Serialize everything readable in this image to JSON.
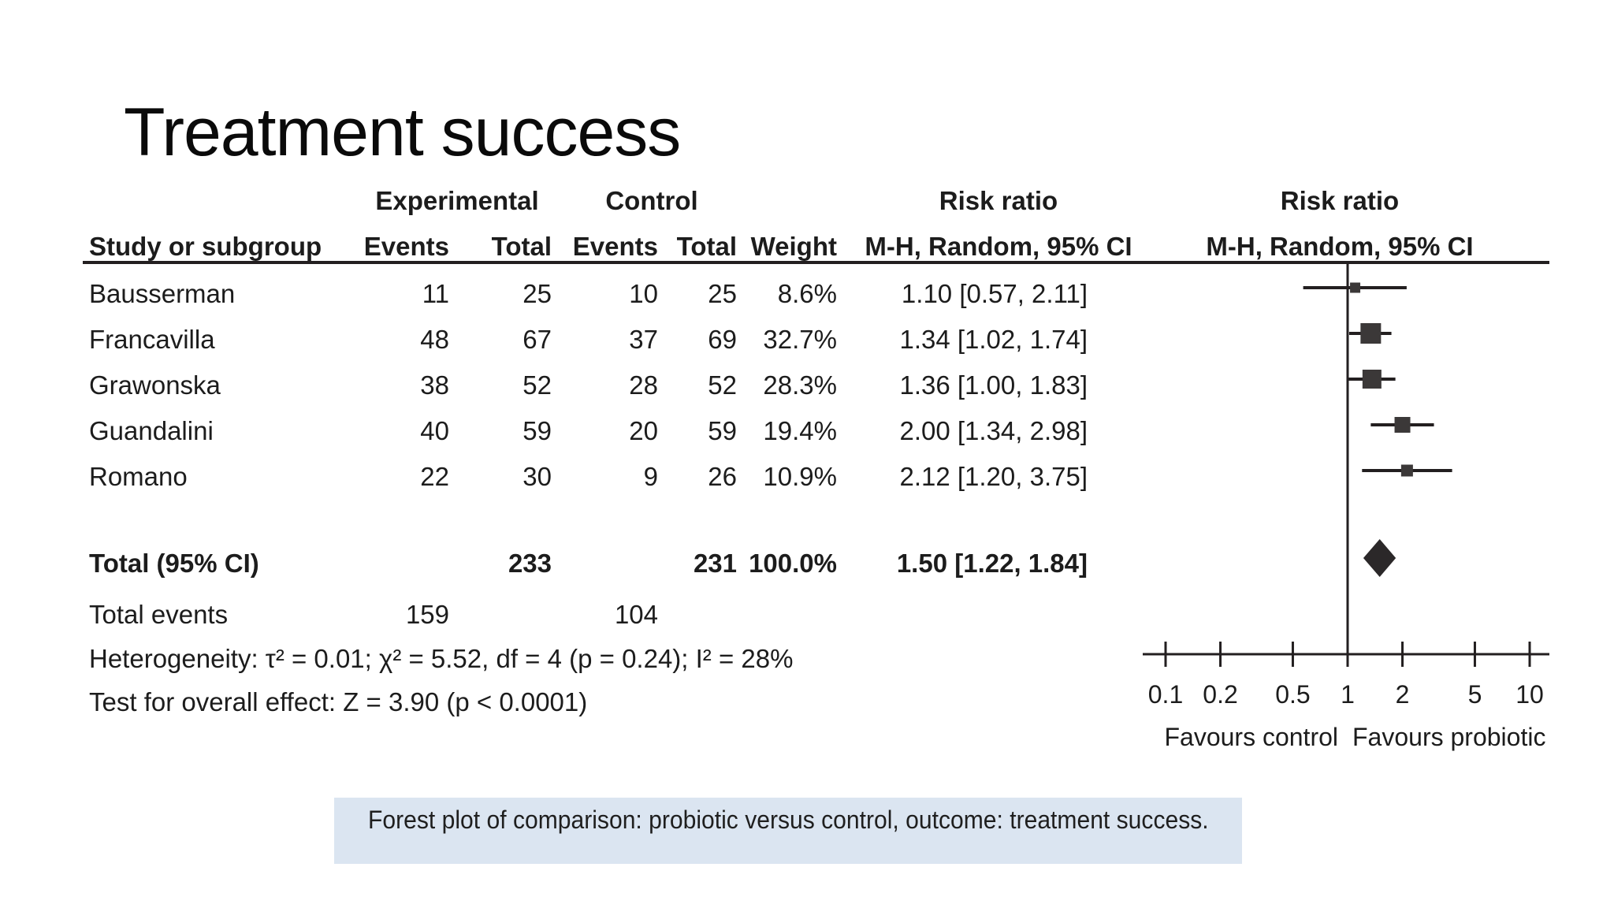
{
  "slide": {
    "title": "Treatment success"
  },
  "table": {
    "group_headers": {
      "experimental": "Experimental",
      "control": "Control",
      "risk_ratio_left": "Risk ratio",
      "risk_ratio_right": "Risk ratio"
    },
    "column_headers": {
      "study": "Study or subgroup",
      "exp_events": "Events",
      "exp_total": "Total",
      "ctrl_events": "Events",
      "ctrl_total": "Total",
      "weight": "Weight",
      "mh_left": "M-H, Random, 95% CI",
      "mh_right": "M-H, Random, 95% CI"
    },
    "rows": [
      {
        "study": "Bausserman",
        "exp_events": "11",
        "exp_total": "25",
        "ctrl_events": "10",
        "ctrl_total": "25",
        "weight": "8.6%",
        "rr_text": "1.10 [0.57, 2.11]"
      },
      {
        "study": "Francavilla",
        "exp_events": "48",
        "exp_total": "67",
        "ctrl_events": "37",
        "ctrl_total": "69",
        "weight": "32.7%",
        "rr_text": "1.34 [1.02, 1.74]"
      },
      {
        "study": "Grawonska",
        "exp_events": "38",
        "exp_total": "52",
        "ctrl_events": "28",
        "ctrl_total": "52",
        "weight": "28.3%",
        "rr_text": "1.36 [1.00, 1.83]"
      },
      {
        "study": "Guandalini",
        "exp_events": "40",
        "exp_total": "59",
        "ctrl_events": "20",
        "ctrl_total": "59",
        "weight": "19.4%",
        "rr_text": "2.00 [1.34, 2.98]"
      },
      {
        "study": "Romano",
        "exp_events": "22",
        "exp_total": "30",
        "ctrl_events": "9",
        "ctrl_total": "26",
        "weight": "10.9%",
        "rr_text": "2.12 [1.20, 3.75]"
      }
    ],
    "total_row": {
      "label": "Total (95% CI)",
      "exp_total": "233",
      "ctrl_total": "231",
      "weight": "100.0%",
      "rr_text": "1.50 [1.22, 1.84]"
    },
    "total_events": {
      "label": "Total events",
      "exp": "159",
      "ctrl": "104"
    },
    "heterogeneity": "Heterogeneity: τ² = 0.01; χ² = 5.52, df = 4 (p = 0.24); I² = 28%",
    "overall_effect": "Test for overall effect: Z = 3.90 (p < 0.0001)"
  },
  "chart_data": {
    "type": "forest",
    "x_scale": "log10",
    "axis_ticks": [
      0.1,
      0.2,
      0.5,
      1,
      2,
      5,
      10
    ],
    "axis_tick_labels": [
      "0.1",
      "0.2",
      "0.5",
      "1",
      "2",
      "5",
      "10"
    ],
    "null_line_value": 1,
    "favours_left": "Favours control",
    "favours_right": "Favours probiotic",
    "studies": [
      {
        "name": "Bausserman",
        "rr": 1.1,
        "ci_low": 0.57,
        "ci_high": 2.11,
        "weight_pct": 8.6
      },
      {
        "name": "Francavilla",
        "rr": 1.34,
        "ci_low": 1.02,
        "ci_high": 1.74,
        "weight_pct": 32.7
      },
      {
        "name": "Grawonska",
        "rr": 1.36,
        "ci_low": 1.0,
        "ci_high": 1.83,
        "weight_pct": 28.3
      },
      {
        "name": "Guandalini",
        "rr": 2.0,
        "ci_low": 1.34,
        "ci_high": 2.98,
        "weight_pct": 19.4
      },
      {
        "name": "Romano",
        "rr": 2.12,
        "ci_low": 1.2,
        "ci_high": 3.75,
        "weight_pct": 10.9
      }
    ],
    "total": {
      "rr": 1.5,
      "ci_low": 1.22,
      "ci_high": 1.84
    }
  },
  "caption": {
    "text": "Forest plot of comparison: probiotic versus control, outcome: treatment success."
  },
  "colors": {
    "marker": "#3b3838",
    "diamond": "#2b2829",
    "line": "#231f20",
    "caption_bg": "#dbe5f1",
    "text": "#1c1c1c"
  }
}
